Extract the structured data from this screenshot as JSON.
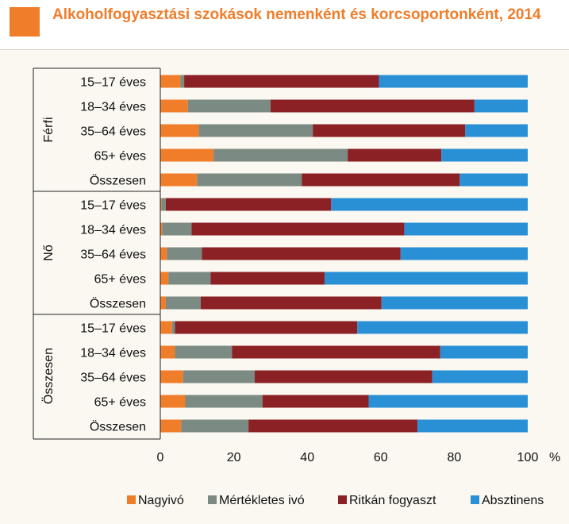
{
  "title": "Alkoholfogyasztási szokások nemenként és korcsoportonként, 2014",
  "colors": {
    "title": "#f07d2a",
    "series": [
      "#f07d2a",
      "#7b8a82",
      "#8c2125",
      "#2a90d6"
    ]
  },
  "chart_data": {
    "type": "bar",
    "orientation": "horizontal",
    "stacked": true,
    "title": "Alkoholfogyasztási szokások nemenként és korcsoportonként, 2014",
    "xlabel": "%",
    "xlim": [
      0,
      100
    ],
    "xticks": [
      0,
      20,
      40,
      60,
      80,
      100
    ],
    "grid": false,
    "legend_position": "bottom",
    "groups": [
      {
        "name": "Férfi",
        "categories": [
          "15–17 éves",
          "18–34 éves",
          "35–64 éves",
          "65+ éves",
          "Összesen"
        ]
      },
      {
        "name": "Nő",
        "categories": [
          "15–17 éves",
          "18–34 éves",
          "35–64 éves",
          "65+ éves",
          "Összesen"
        ]
      },
      {
        "name": "Összesen",
        "categories": [
          "15–17 éves",
          "18–34 éves",
          "35–64 éves",
          "65+ éves",
          "Összesen"
        ]
      }
    ],
    "series": [
      {
        "name": "Nagyivó",
        "values": [
          5.5,
          7.5,
          10.5,
          14.5,
          10.0,
          0.3,
          0.5,
          1.8,
          2.2,
          1.5,
          3.2,
          4.0,
          6.2,
          6.8,
          5.7
        ]
      },
      {
        "name": "Mértékletes ivó",
        "values": [
          1.0,
          22.5,
          31.0,
          36.5,
          28.5,
          1.2,
          8.0,
          9.5,
          11.5,
          9.5,
          0.8,
          15.5,
          19.5,
          21.0,
          18.3
        ]
      },
      {
        "name": "Ritkán fogyaszt",
        "values": [
          53.0,
          55.5,
          41.5,
          25.5,
          43.0,
          45.0,
          57.9,
          54.1,
          31.0,
          49.2,
          49.6,
          56.7,
          48.3,
          28.9,
          46.0
        ]
      },
      {
        "name": "Absztinens",
        "values": [
          40.5,
          14.5,
          17.0,
          23.5,
          18.5,
          53.5,
          33.6,
          34.6,
          55.3,
          39.8,
          46.4,
          23.8,
          26.0,
          43.3,
          30.0
        ]
      }
    ]
  }
}
